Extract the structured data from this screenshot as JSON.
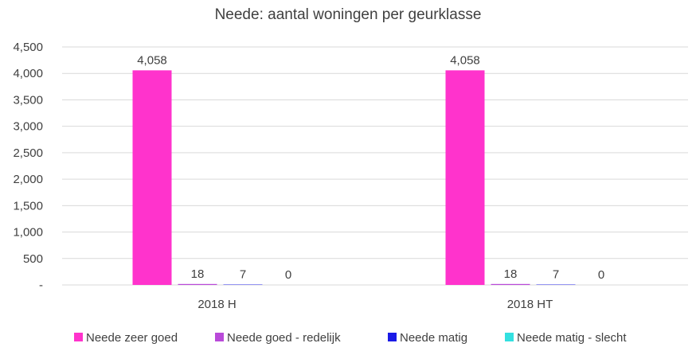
{
  "chart_data": {
    "type": "bar",
    "title": "Neede: aantal woningen per geurklasse",
    "categories": [
      "2018 H",
      "2018 HT"
    ],
    "series": [
      {
        "name": "Neede zeer goed",
        "values": [
          4058,
          4058
        ],
        "color": "#ff33cc",
        "labels": [
          "4,058",
          "4,058"
        ]
      },
      {
        "name": "Neede goed - redelijk",
        "values": [
          18,
          18
        ],
        "color": "#b94ad9",
        "labels": [
          "18",
          "18"
        ]
      },
      {
        "name": "Neede matig",
        "values": [
          7,
          7
        ],
        "color": "#1a1ae6",
        "labels": [
          "7",
          "7"
        ]
      },
      {
        "name": "Neede matig - slecht",
        "values": [
          0,
          0
        ],
        "color": "#33e0e0",
        "labels": [
          "0",
          "0"
        ]
      }
    ],
    "ylim": [
      0,
      4500
    ],
    "y_ticks": [
      0,
      500,
      1000,
      1500,
      2000,
      2500,
      3000,
      3500,
      4000,
      4500
    ],
    "y_tick_labels": [
      "-",
      "500",
      "1,000",
      "1,500",
      "2,000",
      "2,500",
      "3,000",
      "3,500",
      "4,000",
      "4,500"
    ],
    "grid": true,
    "legend": "bottom"
  }
}
